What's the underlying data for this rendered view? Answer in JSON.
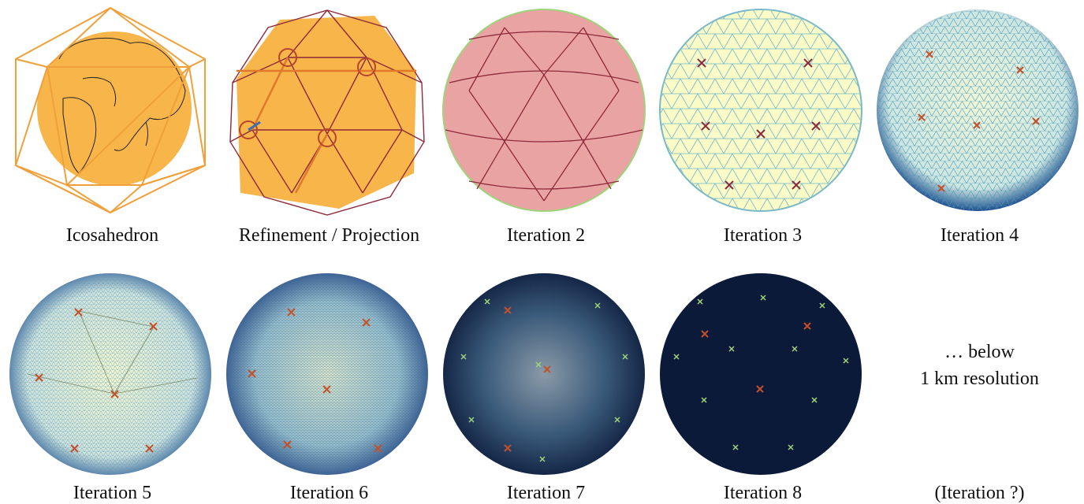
{
  "captions": {
    "icosahedron": "Icosahedron",
    "refinement": "Refinement / Projection",
    "iter2": "Iteration 2",
    "iter3": "Iteration 3",
    "iter4": "Iteration 4",
    "iter5": "Iteration 5",
    "iter6": "Iteration 6",
    "iter7": "Iteration 7",
    "iter8": "Iteration 8",
    "iterq": "(Iteration ?)"
  },
  "note": {
    "line1": "… below",
    "line2": "1 km resolution"
  },
  "colors": {
    "orange": "#f0a03a",
    "sphere_fill": "#f7b54a",
    "dark_red": "#8e2a3a",
    "pink": "#e9a3a3",
    "light_green": "#9fd37a",
    "pale_yellow": "#fbfbc8",
    "blue_edge": "#1d4f8f",
    "navy": "#0c1a3a"
  }
}
